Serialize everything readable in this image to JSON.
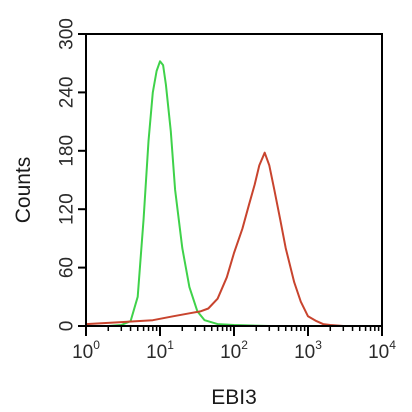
{
  "chart_data": {
    "type": "line",
    "xlabel": "EBI3",
    "ylabel": "Counts",
    "x_scale": "log",
    "xlim": [
      1,
      10000
    ],
    "ylim": [
      0,
      300
    ],
    "grid": false,
    "legend": "none",
    "x_ticks": [
      {
        "base": "10",
        "exp": "0",
        "value": 1
      },
      {
        "base": "10",
        "exp": "1",
        "value": 10
      },
      {
        "base": "10",
        "exp": "2",
        "value": 100
      },
      {
        "base": "10",
        "exp": "3",
        "value": 1000
      },
      {
        "base": "10",
        "exp": "4",
        "value": 10000
      }
    ],
    "y_ticks": [
      "0",
      "60",
      "120",
      "180",
      "240",
      "300"
    ],
    "series": [
      {
        "color": "#3fd24a",
        "x": [
          1,
          2,
          3,
          4,
          5,
          6,
          7,
          8,
          9,
          10,
          11,
          12,
          14,
          16,
          20,
          25,
          32,
          40,
          60,
          100,
          300,
          1000,
          10000
        ],
        "y": [
          0,
          0,
          1,
          5,
          30,
          110,
          190,
          240,
          262,
          272,
          268,
          248,
          200,
          140,
          80,
          40,
          15,
          6,
          2,
          1,
          0,
          0,
          0
        ]
      },
      {
        "color": "#c8442e",
        "x": [
          1,
          3,
          8,
          15,
          25,
          35,
          45,
          60,
          80,
          100,
          130,
          160,
          190,
          220,
          260,
          300,
          350,
          420,
          500,
          650,
          800,
          1000,
          1300,
          1600,
          2000,
          3000,
          10000
        ],
        "y": [
          2,
          4,
          6,
          10,
          13,
          15,
          18,
          28,
          50,
          75,
          100,
          125,
          145,
          165,
          178,
          165,
          140,
          110,
          80,
          45,
          25,
          10,
          5,
          2,
          1,
          0,
          0
        ]
      }
    ]
  }
}
